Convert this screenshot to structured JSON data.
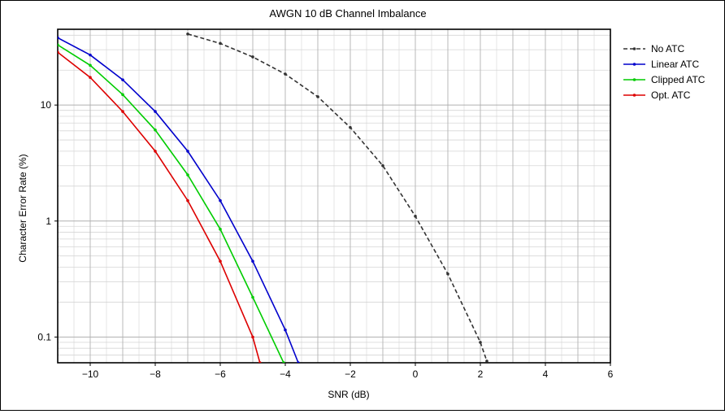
{
  "chart_data": {
    "type": "line",
    "title": "AWGN 10 dB Channel Imbalance",
    "xlabel": "SNR (dB)",
    "ylabel": "Character Error Rate (%)",
    "xlim": [
      -11,
      6
    ],
    "ylim": [
      0.06,
      45
    ],
    "yscale": "log",
    "grid": true,
    "legend_position": "outside-right",
    "xticks": [
      -10,
      -8,
      -6,
      -4,
      -2,
      0,
      2,
      4,
      6
    ],
    "xtick_labels": [
      "−10",
      "−8",
      "−6",
      "−4",
      "−2",
      "0",
      "2",
      "4",
      "6"
    ],
    "yticks": [
      0.1,
      1,
      10
    ],
    "ytick_labels": [
      "0.1",
      "1",
      "10"
    ],
    "series": [
      {
        "name": "No ATC",
        "color": "#333333",
        "dash": true,
        "x": [
          -7,
          -6,
          -5,
          -4,
          -3,
          -2,
          -1,
          0,
          1,
          2,
          2.2
        ],
        "y": [
          41,
          34,
          26,
          18.5,
          11.8,
          6.4,
          3.0,
          1.1,
          0.35,
          0.09,
          0.062
        ]
      },
      {
        "name": "Linear ATC",
        "color": "#0000cc",
        "dash": false,
        "x": [
          -11,
          -10,
          -9,
          -8,
          -7,
          -6,
          -5,
          -4,
          -3.6
        ],
        "y": [
          38,
          27,
          16.5,
          8.8,
          4.0,
          1.5,
          0.45,
          0.115,
          0.06
        ]
      },
      {
        "name": "Clipped ATC",
        "color": "#00cc00",
        "dash": false,
        "x": [
          -11,
          -10,
          -9,
          -8,
          -7,
          -6,
          -5,
          -4.05
        ],
        "y": [
          33,
          22,
          12.3,
          6.1,
          2.5,
          0.85,
          0.22,
          0.06
        ]
      },
      {
        "name": "Opt. ATC",
        "color": "#dd0000",
        "dash": false,
        "x": [
          -11,
          -10,
          -9,
          -8,
          -7,
          -6,
          -5,
          -4.78
        ],
        "y": [
          28.5,
          17.3,
          8.8,
          4.0,
          1.5,
          0.45,
          0.1,
          0.06
        ]
      }
    ]
  }
}
